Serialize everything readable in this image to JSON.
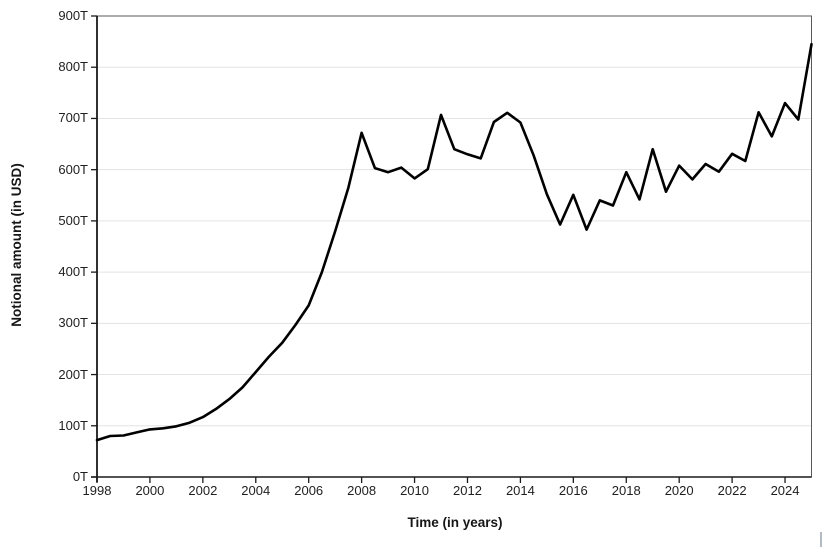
{
  "chart_data": {
    "type": "line",
    "title": "",
    "xlabel": "Time (in years)",
    "ylabel": "Notional amount (in USD)",
    "xlim": [
      1998,
      2025
    ],
    "ylim": [
      0,
      900
    ],
    "grid": "horizontal-only",
    "legend": "none",
    "line_color": "#000000",
    "grid_color": "#e3e3e3",
    "border_color": "#595959",
    "axis_color": "#1a1a1a",
    "tick_label_color": "#1f1f1f",
    "x_ticks": [
      1998,
      2000,
      2002,
      2004,
      2006,
      2008,
      2010,
      2012,
      2014,
      2016,
      2018,
      2020,
      2022,
      2024
    ],
    "x_tick_labels": [
      "1998",
      "2000",
      "2002",
      "2004",
      "2006",
      "2008",
      "2010",
      "2012",
      "2014",
      "2016",
      "2018",
      "2020",
      "2022",
      "2024"
    ],
    "y_ticks": [
      0,
      100,
      200,
      300,
      400,
      500,
      600,
      700,
      800,
      900
    ],
    "y_tick_labels": [
      "0T",
      "100T",
      "200T",
      "300T",
      "400T",
      "500T",
      "600T",
      "700T",
      "800T",
      "900T"
    ],
    "x": [
      1998,
      1998.5,
      1999,
      1999.5,
      2000,
      2000.5,
      2001,
      2001.5,
      2002,
      2002.5,
      2003,
      2003.5,
      2004,
      2004.5,
      2005,
      2005.5,
      2006,
      2006.5,
      2007,
      2007.5,
      2008,
      2008.5,
      2009,
      2009.5,
      2010,
      2010.5,
      2011,
      2011.5,
      2012,
      2012.5,
      2013,
      2013.5,
      2014,
      2014.5,
      2015,
      2015.5,
      2016,
      2016.5,
      2017,
      2017.5,
      2018,
      2018.5,
      2019,
      2019.5,
      2020,
      2020.5,
      2021,
      2021.5,
      2022,
      2022.5,
      2023,
      2023.5,
      2024,
      2024.5,
      2025
    ],
    "values": [
      72,
      80,
      81,
      87,
      93,
      95,
      99,
      106,
      117,
      133,
      152,
      175,
      205,
      235,
      262,
      297,
      335,
      400,
      480,
      565,
      672,
      603,
      595,
      604,
      583,
      601,
      707,
      640,
      630,
      622,
      693,
      711,
      692,
      628,
      552,
      493,
      551,
      483,
      540,
      530,
      595,
      542,
      640,
      557,
      608,
      581,
      611,
      596,
      631,
      617,
      712,
      665,
      730,
      698,
      845
    ],
    "value_unit": "T (trillions USD)"
  }
}
